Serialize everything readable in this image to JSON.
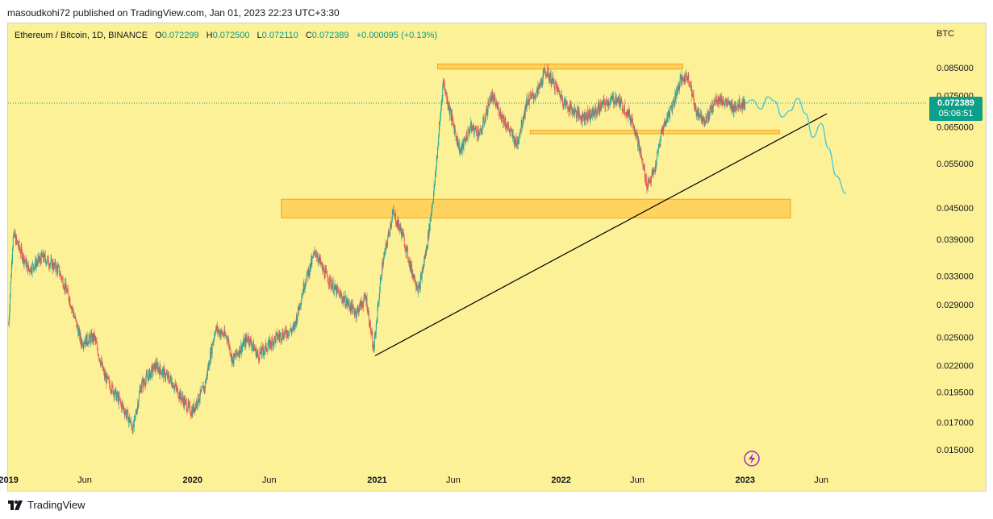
{
  "header": {
    "published_text": "masoudkohi72 published on TradingView.com, Jan 01, 2023 22:23 UTC+3:30"
  },
  "footer": {
    "brand": "TradingView"
  },
  "legend": {
    "symbol": "Ethereum / Bitcoin, 1D, BINANCE",
    "open_label": "O",
    "open": "0.072299",
    "high_label": "H",
    "high": "0.072500",
    "low_label": "L",
    "low": "0.072110",
    "close_label": "C",
    "close": "0.072389",
    "change": "+0.000095 (+0.13%)"
  },
  "colors": {
    "background": "#fdf197",
    "up": "#26a69a",
    "down": "#ef5350",
    "zone_fill": "#ffc84a",
    "zone_border": "#f7a21b",
    "trendline": "#000000",
    "projection": "#3ec6e0",
    "price_badge": "#0d9f8a"
  },
  "chart_data": {
    "type": "candlestick",
    "symbol": "Ethereum / Bitcoin",
    "interval": "1D",
    "exchange": "BINANCE",
    "currency_label": "BTC",
    "y_scale": "log",
    "ylim": [
      0.0138,
      0.104
    ],
    "price_ticks": [
      "0.085000",
      "0.075000",
      "0.065000",
      "0.055000",
      "0.045000",
      "0.039000",
      "0.033000",
      "0.029000",
      "0.025000",
      "0.022000",
      "0.019500",
      "0.017000",
      "0.015000"
    ],
    "time_labels": [
      {
        "label": "2019",
        "bold": true,
        "date": "2019-01-01"
      },
      {
        "label": "Jun",
        "bold": false,
        "date": "2019-06-01"
      },
      {
        "label": "2020",
        "bold": true,
        "date": "2020-01-01"
      },
      {
        "label": "Jun",
        "bold": false,
        "date": "2020-06-01"
      },
      {
        "label": "2021",
        "bold": true,
        "date": "2021-01-01"
      },
      {
        "label": "Jun",
        "bold": false,
        "date": "2021-06-01"
      },
      {
        "label": "2022",
        "bold": true,
        "date": "2022-01-01"
      },
      {
        "label": "Jun",
        "bold": false,
        "date": "2022-06-01"
      },
      {
        "label": "2023",
        "bold": true,
        "date": "2023-01-01"
      },
      {
        "label": "Jun",
        "bold": false,
        "date": "2023-06-01"
      }
    ],
    "xlim": [
      "2018-12-31",
      "2023-12-29"
    ],
    "last_price": "0.072389",
    "countdown": "05:06:51",
    "price_path": [
      [
        "2019-01-01",
        0.0265
      ],
      [
        "2019-01-10",
        0.04
      ],
      [
        "2019-02-10",
        0.034
      ],
      [
        "2019-03-10",
        0.036
      ],
      [
        "2019-04-10",
        0.034
      ],
      [
        "2019-05-01",
        0.03
      ],
      [
        "2019-05-25",
        0.0245
      ],
      [
        "2019-06-20",
        0.025
      ],
      [
        "2019-07-10",
        0.021
      ],
      [
        "2019-07-30",
        0.0195
      ],
      [
        "2019-08-25",
        0.0175
      ],
      [
        "2019-09-05",
        0.0165
      ],
      [
        "2019-09-20",
        0.02
      ],
      [
        "2019-10-20",
        0.022
      ],
      [
        "2019-11-20",
        0.0205
      ],
      [
        "2019-12-10",
        0.019
      ],
      [
        "2019-12-30",
        0.0178
      ],
      [
        "2020-01-25",
        0.02
      ],
      [
        "2020-02-15",
        0.026
      ],
      [
        "2020-03-10",
        0.025
      ],
      [
        "2020-03-20",
        0.0225
      ],
      [
        "2020-04-20",
        0.025
      ],
      [
        "2020-05-10",
        0.023
      ],
      [
        "2020-06-15",
        0.025
      ],
      [
        "2020-07-20",
        0.026
      ],
      [
        "2020-08-10",
        0.032
      ],
      [
        "2020-09-01",
        0.037
      ],
      [
        "2020-09-15",
        0.034
      ],
      [
        "2020-10-10",
        0.031
      ],
      [
        "2020-11-20",
        0.028
      ],
      [
        "2020-12-10",
        0.03
      ],
      [
        "2020-12-25",
        0.0235
      ],
      [
        "2021-01-10",
        0.034
      ],
      [
        "2021-02-01",
        0.044
      ],
      [
        "2021-02-20",
        0.04
      ],
      [
        "2021-03-10",
        0.034
      ],
      [
        "2021-03-25",
        0.031
      ],
      [
        "2021-04-10",
        0.038
      ],
      [
        "2021-04-25",
        0.05
      ],
      [
        "2021-05-12",
        0.08
      ],
      [
        "2021-05-25",
        0.07
      ],
      [
        "2021-06-15",
        0.058
      ],
      [
        "2021-07-05",
        0.065
      ],
      [
        "2021-07-25",
        0.063
      ],
      [
        "2021-08-15",
        0.075
      ],
      [
        "2021-09-10",
        0.067
      ],
      [
        "2021-10-05",
        0.06
      ],
      [
        "2021-10-25",
        0.073
      ],
      [
        "2021-11-15",
        0.076
      ],
      [
        "2021-12-01",
        0.084
      ],
      [
        "2021-12-15",
        0.08
      ],
      [
        "2022-01-10",
        0.072
      ],
      [
        "2022-02-10",
        0.068
      ],
      [
        "2022-03-05",
        0.069
      ],
      [
        "2022-03-25",
        0.072
      ],
      [
        "2022-04-20",
        0.074
      ],
      [
        "2022-05-10",
        0.07
      ],
      [
        "2022-05-25",
        0.066
      ],
      [
        "2022-06-10",
        0.056
      ],
      [
        "2022-06-20",
        0.05
      ],
      [
        "2022-07-05",
        0.053
      ],
      [
        "2022-07-20",
        0.064
      ],
      [
        "2022-08-10",
        0.072
      ],
      [
        "2022-08-25",
        0.08
      ],
      [
        "2022-09-10",
        0.082
      ],
      [
        "2022-09-25",
        0.07
      ],
      [
        "2022-10-15",
        0.067
      ],
      [
        "2022-11-05",
        0.074
      ],
      [
        "2022-11-20",
        0.073
      ],
      [
        "2022-12-05",
        0.071
      ],
      [
        "2022-12-20",
        0.072
      ],
      [
        "2023-01-01",
        0.0724
      ]
    ],
    "projection_path": [
      [
        "2023-01-01",
        0.0724
      ],
      [
        "2023-01-15",
        0.0735
      ],
      [
        "2023-02-01",
        0.0705
      ],
      [
        "2023-02-15",
        0.0745
      ],
      [
        "2023-03-01",
        0.073
      ],
      [
        "2023-03-15",
        0.068
      ],
      [
        "2023-04-01",
        0.07
      ],
      [
        "2023-04-15",
        0.074
      ],
      [
        "2023-05-01",
        0.069
      ],
      [
        "2023-05-15",
        0.062
      ],
      [
        "2023-06-01",
        0.066
      ],
      [
        "2023-06-15",
        0.059
      ],
      [
        "2023-07-01",
        0.052
      ],
      [
        "2023-07-20",
        0.048
      ]
    ],
    "zones": [
      {
        "from": "2021-05-01",
        "to": "2022-08-30",
        "price_high": 0.0865,
        "price_low": 0.0845
      },
      {
        "from": "2021-11-01",
        "to": "2023-03-10",
        "price_high": 0.064,
        "price_low": 0.063
      },
      {
        "from": "2020-06-25",
        "to": "2023-04-01",
        "price_high": 0.0468,
        "price_low": 0.043
      }
    ],
    "trendline": [
      [
        "2020-12-28",
        0.023
      ],
      [
        "2023-06-12",
        0.069
      ]
    ]
  }
}
